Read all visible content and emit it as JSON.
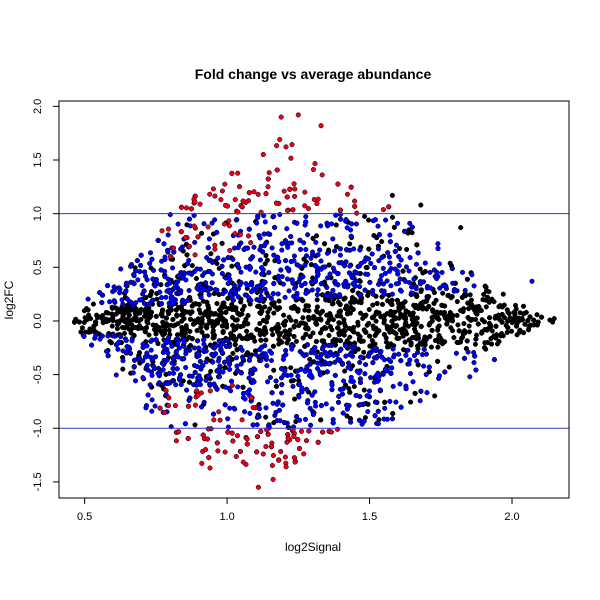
{
  "chart_data": {
    "type": "scatter",
    "title": "Fold change vs average abundance",
    "xlabel": "log2Signal",
    "ylabel": "log2FC",
    "xlim": [
      0.41,
      2.2
    ],
    "ylim": [
      -1.65,
      2.05
    ],
    "x_ticks": [
      "0.5",
      "1.0",
      "1.5",
      "2.0"
    ],
    "y_ticks": [
      "-1.5",
      "-1.0",
      "-0.5",
      "0.0",
      "0.5",
      "1.0",
      "1.5",
      "2.0"
    ],
    "hlines": [
      1.0,
      -1.0
    ],
    "hline_color": "#3333cc",
    "grid": false,
    "legend": "none",
    "point_groups": [
      {
        "group": "not significant",
        "color": "#000000"
      },
      {
        "group": "significant",
        "color": "#0000ff"
      },
      {
        "group": "significant, |log2FC| >= 1",
        "color": "#e8001c"
      }
    ],
    "envelope": {
      "x": [
        0.45,
        0.55,
        0.65,
        0.75,
        0.85,
        0.95,
        1.05,
        1.15,
        1.25,
        1.35,
        1.45,
        1.55,
        1.65,
        1.75,
        1.85,
        1.95,
        2.05,
        2.15
      ],
      "upper": [
        0.1,
        0.3,
        0.55,
        0.9,
        1.15,
        1.3,
        1.5,
        1.85,
        1.9,
        1.45,
        1.3,
        1.2,
        0.9,
        0.75,
        0.55,
        0.35,
        0.15,
        0.05
      ],
      "lower": [
        -0.1,
        -0.4,
        -0.65,
        -0.9,
        -1.3,
        -1.35,
        -1.4,
        -1.55,
        -1.3,
        -1.15,
        -1.0,
        -0.95,
        -0.85,
        -0.7,
        -0.55,
        -0.35,
        -0.15,
        -0.05
      ]
    },
    "n_points": 3400,
    "outliers": [
      {
        "x": 1.25,
        "y": 1.92,
        "group": "significant, |log2FC| >= 1"
      },
      {
        "x": 1.19,
        "y": 1.9,
        "group": "significant, |log2FC| >= 1"
      },
      {
        "x": 1.33,
        "y": 1.82,
        "group": "significant, |log2FC| >= 1"
      },
      {
        "x": 1.11,
        "y": -1.55,
        "group": "significant, |log2FC| >= 1"
      },
      {
        "x": 0.94,
        "y": -1.37,
        "group": "significant, |log2FC| >= 1"
      },
      {
        "x": 1.68,
        "y": 1.08,
        "group": "not significant"
      },
      {
        "x": 1.58,
        "y": 1.17,
        "group": "not significant"
      },
      {
        "x": 2.07,
        "y": 0.37,
        "group": "significant"
      },
      {
        "x": 1.82,
        "y": 0.87,
        "group": "not significant"
      }
    ]
  }
}
